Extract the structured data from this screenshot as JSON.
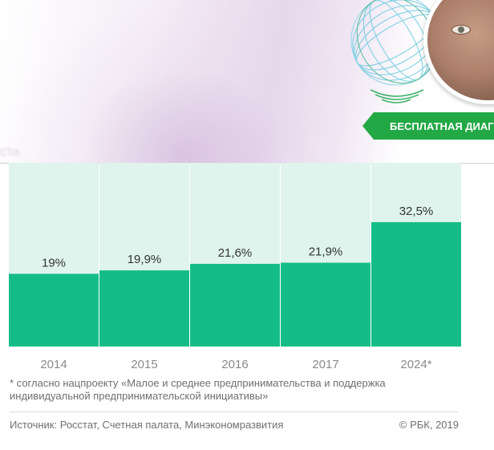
{
  "ad": {
    "caption": "СТА",
    "cta_label": "БЕСПЛАТНАЯ ДИАГ",
    "accent_color": "#22a845",
    "globe_color": "#7fd0e3"
  },
  "chart_data": {
    "type": "bar",
    "categories": [
      "2014",
      "2015",
      "2016",
      "2017",
      "2024*"
    ],
    "values": [
      19,
      19.9,
      21.6,
      21.9,
      32.5
    ],
    "value_labels": [
      "19%",
      "19,9%",
      "21,6%",
      "21,9%",
      "32,5%"
    ],
    "unit": "%",
    "title": "",
    "xlabel": "",
    "ylabel": "",
    "ylim": [
      0,
      48
    ],
    "grid": false,
    "legend": "none",
    "bar_color": "#14bd88",
    "background_color": "#dff4ec"
  },
  "footnote": "* согласно нацпроекту  «Малое и среднее предпринимательства и поддержка индивидуальной предпринимательской инициативы»",
  "source": "Источник: Росстат, Счетная палата, Минэкономразвития",
  "copyright": "© РБК, 2019"
}
